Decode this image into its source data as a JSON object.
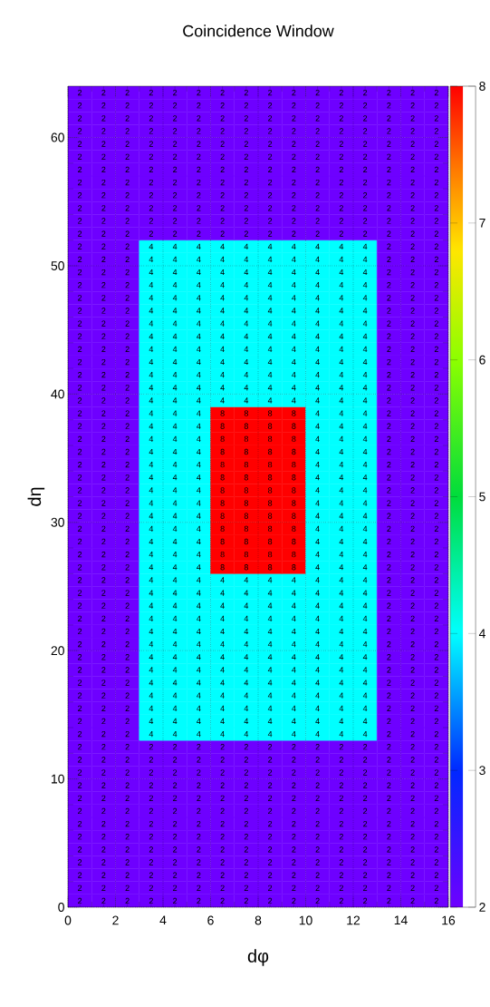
{
  "chart_data": {
    "type": "heatmap",
    "title": "Coincidence Window",
    "xlabel": "dφ",
    "ylabel": "dη",
    "x": [
      0.5,
      1.5,
      2.5,
      3.5,
      4.5,
      5.5,
      6.5,
      7.5,
      8.5,
      9.5,
      10.5,
      11.5,
      12.5,
      13.5,
      14.5,
      15.5
    ],
    "y": [
      63.5,
      62.5,
      61.5,
      60.5,
      59.5,
      58.5,
      57.5,
      56.5,
      55.5,
      54.5,
      53.5,
      52.5,
      51.5,
      50.5,
      49.5,
      48.5,
      47.5,
      46.5,
      45.5,
      44.5,
      43.5,
      42.5,
      41.5,
      40.5,
      39.5,
      38.5,
      37.5,
      36.5,
      35.5,
      34.5,
      33.5,
      32.5,
      31.5,
      30.5,
      29.5,
      28.5,
      27.5,
      26.5,
      25.5,
      24.5,
      23.5,
      22.5,
      21.5,
      20.5,
      19.5,
      18.5,
      17.5,
      16.5,
      15.5,
      14.5,
      13.5,
      12.5,
      11.5,
      10.5,
      9.5,
      8.5,
      7.5,
      6.5,
      5.5,
      4.5,
      3.5,
      2.5,
      1.5,
      0.5
    ],
    "xlim": [
      0,
      16
    ],
    "xticks": [
      0,
      2,
      4,
      6,
      8,
      10,
      12,
      14,
      16
    ],
    "ylim": [
      0,
      64
    ],
    "yticks": [
      0,
      10,
      20,
      30,
      40,
      50,
      60
    ],
    "clim": [
      2,
      8
    ],
    "cticks": [
      2,
      3,
      4,
      5,
      6,
      7,
      8
    ],
    "grid": true,
    "data_labels": true,
    "cells": [
      [
        2,
        2,
        2,
        2,
        2,
        2,
        2,
        2,
        2,
        2,
        2,
        2,
        2,
        2,
        2,
        2
      ],
      [
        2,
        2,
        2,
        2,
        2,
        2,
        2,
        2,
        2,
        2,
        2,
        2,
        2,
        2,
        2,
        2
      ],
      [
        2,
        2,
        2,
        2,
        2,
        2,
        2,
        2,
        2,
        2,
        2,
        2,
        2,
        2,
        2,
        2
      ],
      [
        2,
        2,
        2,
        2,
        2,
        2,
        2,
        2,
        2,
        2,
        2,
        2,
        2,
        2,
        2,
        2
      ],
      [
        2,
        2,
        2,
        2,
        2,
        2,
        2,
        2,
        2,
        2,
        2,
        2,
        2,
        2,
        2,
        2
      ],
      [
        2,
        2,
        2,
        2,
        2,
        2,
        2,
        2,
        2,
        2,
        2,
        2,
        2,
        2,
        2,
        2
      ],
      [
        2,
        2,
        2,
        2,
        2,
        2,
        2,
        2,
        2,
        2,
        2,
        2,
        2,
        2,
        2,
        2
      ],
      [
        2,
        2,
        2,
        2,
        2,
        2,
        2,
        2,
        2,
        2,
        2,
        2,
        2,
        2,
        2,
        2
      ],
      [
        2,
        2,
        2,
        2,
        2,
        2,
        2,
        2,
        2,
        2,
        2,
        2,
        2,
        2,
        2,
        2
      ],
      [
        2,
        2,
        2,
        2,
        2,
        2,
        2,
        2,
        2,
        2,
        2,
        2,
        2,
        2,
        2,
        2
      ],
      [
        2,
        2,
        2,
        2,
        2,
        2,
        2,
        2,
        2,
        2,
        2,
        2,
        2,
        2,
        2,
        2
      ],
      [
        2,
        2,
        2,
        2,
        2,
        2,
        2,
        2,
        2,
        2,
        2,
        2,
        2,
        2,
        2,
        2
      ],
      [
        2,
        2,
        2,
        4,
        4,
        4,
        4,
        4,
        4,
        4,
        4,
        4,
        4,
        2,
        2,
        2
      ],
      [
        2,
        2,
        2,
        4,
        4,
        4,
        4,
        4,
        4,
        4,
        4,
        4,
        4,
        2,
        2,
        2
      ],
      [
        2,
        2,
        2,
        4,
        4,
        4,
        4,
        4,
        4,
        4,
        4,
        4,
        4,
        2,
        2,
        2
      ],
      [
        2,
        2,
        2,
        4,
        4,
        4,
        4,
        4,
        4,
        4,
        4,
        4,
        4,
        2,
        2,
        2
      ],
      [
        2,
        2,
        2,
        4,
        4,
        4,
        4,
        4,
        4,
        4,
        4,
        4,
        4,
        2,
        2,
        2
      ],
      [
        2,
        2,
        2,
        4,
        4,
        4,
        4,
        4,
        4,
        4,
        4,
        4,
        4,
        2,
        2,
        2
      ],
      [
        2,
        2,
        2,
        4,
        4,
        4,
        4,
        4,
        4,
        4,
        4,
        4,
        4,
        2,
        2,
        2
      ],
      [
        2,
        2,
        2,
        4,
        4,
        4,
        4,
        4,
        4,
        4,
        4,
        4,
        4,
        2,
        2,
        2
      ],
      [
        2,
        2,
        2,
        4,
        4,
        4,
        4,
        4,
        4,
        4,
        4,
        4,
        4,
        2,
        2,
        2
      ],
      [
        2,
        2,
        2,
        4,
        4,
        4,
        4,
        4,
        4,
        4,
        4,
        4,
        4,
        2,
        2,
        2
      ],
      [
        2,
        2,
        2,
        4,
        4,
        4,
        4,
        4,
        4,
        4,
        4,
        4,
        4,
        2,
        2,
        2
      ],
      [
        2,
        2,
        2,
        4,
        4,
        4,
        4,
        4,
        4,
        4,
        4,
        4,
        4,
        2,
        2,
        2
      ],
      [
        2,
        2,
        2,
        4,
        4,
        4,
        4,
        4,
        4,
        4,
        4,
        4,
        4,
        2,
        2,
        2
      ],
      [
        2,
        2,
        2,
        4,
        4,
        4,
        8,
        8,
        8,
        8,
        4,
        4,
        4,
        2,
        2,
        2
      ],
      [
        2,
        2,
        2,
        4,
        4,
        4,
        8,
        8,
        8,
        8,
        4,
        4,
        4,
        2,
        2,
        2
      ],
      [
        2,
        2,
        2,
        4,
        4,
        4,
        8,
        8,
        8,
        8,
        4,
        4,
        4,
        2,
        2,
        2
      ],
      [
        2,
        2,
        2,
        4,
        4,
        4,
        8,
        8,
        8,
        8,
        4,
        4,
        4,
        2,
        2,
        2
      ],
      [
        2,
        2,
        2,
        4,
        4,
        4,
        8,
        8,
        8,
        8,
        4,
        4,
        4,
        2,
        2,
        2
      ],
      [
        2,
        2,
        2,
        4,
        4,
        4,
        8,
        8,
        8,
        8,
        4,
        4,
        4,
        2,
        2,
        2
      ],
      [
        2,
        2,
        2,
        4,
        4,
        4,
        8,
        8,
        8,
        8,
        4,
        4,
        4,
        2,
        2,
        2
      ],
      [
        2,
        2,
        2,
        4,
        4,
        4,
        8,
        8,
        8,
        8,
        4,
        4,
        4,
        2,
        2,
        2
      ],
      [
        2,
        2,
        2,
        4,
        4,
        4,
        8,
        8,
        8,
        8,
        4,
        4,
        4,
        2,
        2,
        2
      ],
      [
        2,
        2,
        2,
        4,
        4,
        4,
        8,
        8,
        8,
        8,
        4,
        4,
        4,
        2,
        2,
        2
      ],
      [
        2,
        2,
        2,
        4,
        4,
        4,
        8,
        8,
        8,
        8,
        4,
        4,
        4,
        2,
        2,
        2
      ],
      [
        2,
        2,
        2,
        4,
        4,
        4,
        8,
        8,
        8,
        8,
        4,
        4,
        4,
        2,
        2,
        2
      ],
      [
        2,
        2,
        2,
        4,
        4,
        4,
        8,
        8,
        8,
        8,
        4,
        4,
        4,
        2,
        2,
        2
      ],
      [
        2,
        2,
        2,
        4,
        4,
        4,
        4,
        4,
        4,
        4,
        4,
        4,
        4,
        2,
        2,
        2
      ],
      [
        2,
        2,
        2,
        4,
        4,
        4,
        4,
        4,
        4,
        4,
        4,
        4,
        4,
        2,
        2,
        2
      ],
      [
        2,
        2,
        2,
        4,
        4,
        4,
        4,
        4,
        4,
        4,
        4,
        4,
        4,
        2,
        2,
        2
      ],
      [
        2,
        2,
        2,
        4,
        4,
        4,
        4,
        4,
        4,
        4,
        4,
        4,
        4,
        2,
        2,
        2
      ],
      [
        2,
        2,
        2,
        4,
        4,
        4,
        4,
        4,
        4,
        4,
        4,
        4,
        4,
        2,
        2,
        2
      ],
      [
        2,
        2,
        2,
        4,
        4,
        4,
        4,
        4,
        4,
        4,
        4,
        4,
        4,
        2,
        2,
        2
      ],
      [
        2,
        2,
        2,
        4,
        4,
        4,
        4,
        4,
        4,
        4,
        4,
        4,
        4,
        2,
        2,
        2
      ],
      [
        2,
        2,
        2,
        4,
        4,
        4,
        4,
        4,
        4,
        4,
        4,
        4,
        4,
        2,
        2,
        2
      ],
      [
        2,
        2,
        2,
        4,
        4,
        4,
        4,
        4,
        4,
        4,
        4,
        4,
        4,
        2,
        2,
        2
      ],
      [
        2,
        2,
        2,
        4,
        4,
        4,
        4,
        4,
        4,
        4,
        4,
        4,
        4,
        2,
        2,
        2
      ],
      [
        2,
        2,
        2,
        4,
        4,
        4,
        4,
        4,
        4,
        4,
        4,
        4,
        4,
        2,
        2,
        2
      ],
      [
        2,
        2,
        2,
        4,
        4,
        4,
        4,
        4,
        4,
        4,
        4,
        4,
        4,
        2,
        2,
        2
      ],
      [
        2,
        2,
        2,
        4,
        4,
        4,
        4,
        4,
        4,
        4,
        4,
        4,
        4,
        2,
        2,
        2
      ],
      [
        2,
        2,
        2,
        2,
        2,
        2,
        2,
        2,
        2,
        2,
        2,
        2,
        2,
        2,
        2,
        2
      ],
      [
        2,
        2,
        2,
        2,
        2,
        2,
        2,
        2,
        2,
        2,
        2,
        2,
        2,
        2,
        2,
        2
      ],
      [
        2,
        2,
        2,
        2,
        2,
        2,
        2,
        2,
        2,
        2,
        2,
        2,
        2,
        2,
        2,
        2
      ],
      [
        2,
        2,
        2,
        2,
        2,
        2,
        2,
        2,
        2,
        2,
        2,
        2,
        2,
        2,
        2,
        2
      ],
      [
        2,
        2,
        2,
        2,
        2,
        2,
        2,
        2,
        2,
        2,
        2,
        2,
        2,
        2,
        2,
        2
      ],
      [
        2,
        2,
        2,
        2,
        2,
        2,
        2,
        2,
        2,
        2,
        2,
        2,
        2,
        2,
        2,
        2
      ],
      [
        2,
        2,
        2,
        2,
        2,
        2,
        2,
        2,
        2,
        2,
        2,
        2,
        2,
        2,
        2,
        2
      ],
      [
        2,
        2,
        2,
        2,
        2,
        2,
        2,
        2,
        2,
        2,
        2,
        2,
        2,
        2,
        2,
        2
      ],
      [
        2,
        2,
        2,
        2,
        2,
        2,
        2,
        2,
        2,
        2,
        2,
        2,
        2,
        2,
        2,
        2
      ],
      [
        2,
        2,
        2,
        2,
        2,
        2,
        2,
        2,
        2,
        2,
        2,
        2,
        2,
        2,
        2,
        2
      ],
      [
        2,
        2,
        2,
        2,
        2,
        2,
        2,
        2,
        2,
        2,
        2,
        2,
        2,
        2,
        2,
        2
      ],
      [
        2,
        2,
        2,
        2,
        2,
        2,
        2,
        2,
        2,
        2,
        2,
        2,
        2,
        2,
        2,
        2
      ],
      [
        2,
        2,
        2,
        2,
        2,
        2,
        2,
        2,
        2,
        2,
        2,
        2,
        2,
        2,
        2,
        2
      ]
    ]
  }
}
